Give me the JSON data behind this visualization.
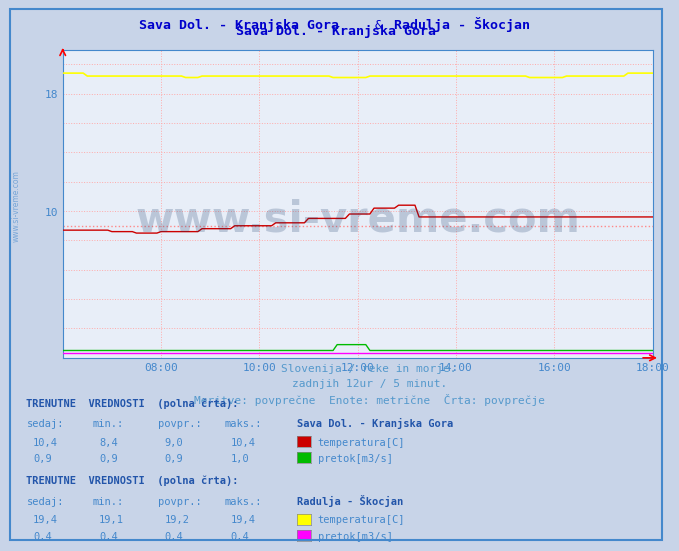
{
  "title_part1": "Sava Dol. - Kranjska Gora",
  "title_part2": " & ",
  "title_part3": "Radulja - Škocjan",
  "title_color": "#0000cc",
  "bg_color": "#c8d4e8",
  "plot_bg_color": "#e8eef8",
  "grid_color": "#ffaaaa",
  "xmin": 6,
  "xmax": 18,
  "ymin": 0,
  "ymax": 21,
  "ytick_show": [
    10,
    18
  ],
  "xtick_labels": [
    "08:00",
    "10:00",
    "12:00",
    "14:00",
    "16:00",
    "18:00"
  ],
  "xtick_positions": [
    8,
    10,
    12,
    14,
    16,
    18
  ],
  "sidebar_color": "#4488cc",
  "bottom_text_color": "#5599cc",
  "table_header_color": "#2255aa",
  "table_data_color": "#4488cc",
  "sava_temp_color": "#cc0000",
  "sava_temp_avg": 9.0,
  "sava_flow_color": "#00bb00",
  "radulja_temp_color": "#ffff00",
  "radulja_flow_color": "#ff00ff",
  "avg_line_color": "#ff8888",
  "watermark": "www.si-vreme.com",
  "watermark_color": "#1a3a6a",
  "legend_sava_title": "Sava Dol. - Kranjska Gora",
  "legend_radulja_title": "Radulja - Škocjan"
}
